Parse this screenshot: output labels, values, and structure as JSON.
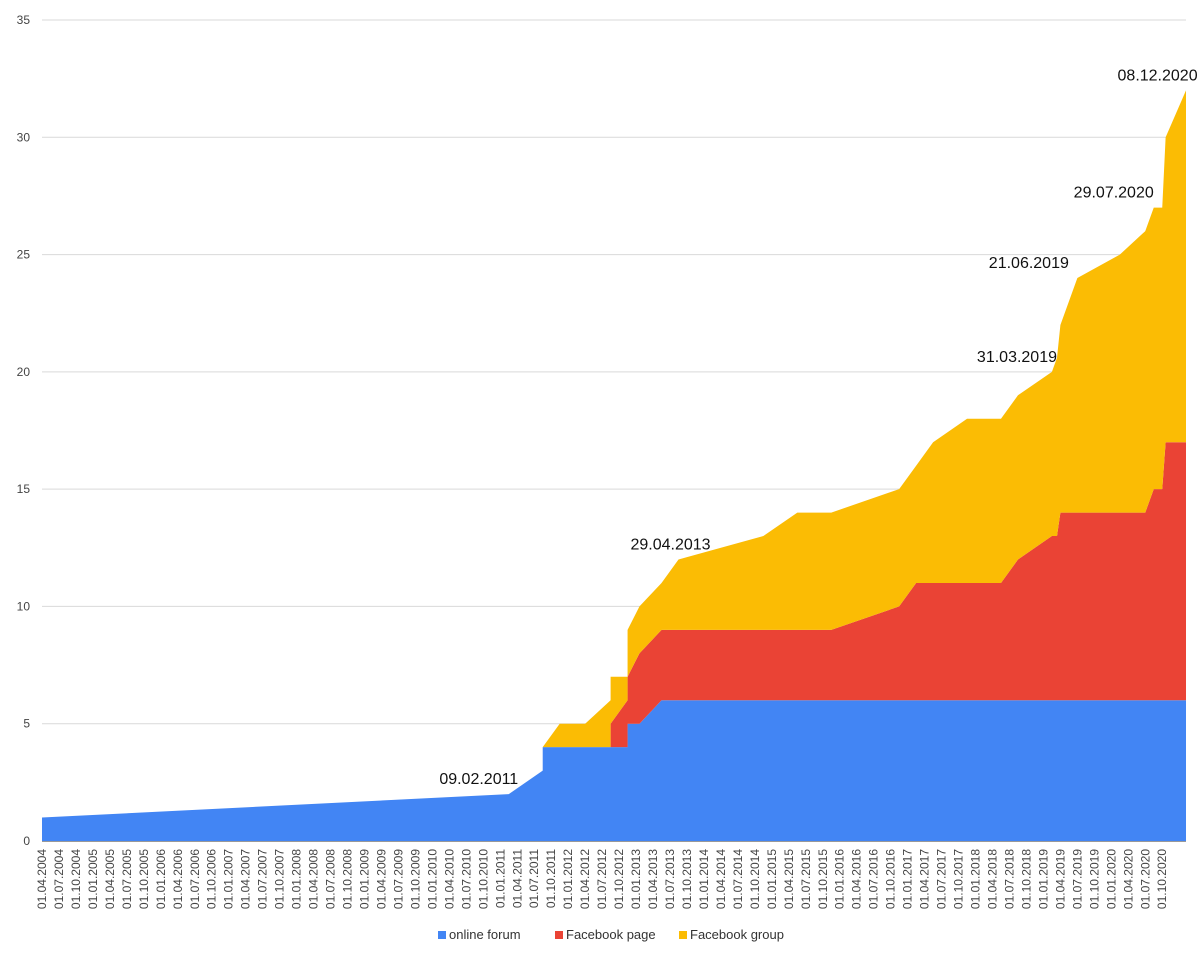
{
  "chart_data": {
    "type": "area",
    "stacked": true,
    "title": "",
    "xlabel": "",
    "ylabel": "",
    "ylim": [
      0,
      35
    ],
    "yticks": [
      0,
      5,
      10,
      15,
      20,
      25,
      30,
      35
    ],
    "grid": true,
    "legend_position": "bottom",
    "x_tick_labels": [
      "01.04.2004",
      "01.07.2004",
      "01.10.2004",
      "01.01.2005",
      "01.04.2005",
      "01.07.2005",
      "01.10.2005",
      "01.01.2006",
      "01.04.2006",
      "01.07.2006",
      "01.10.2006",
      "01.01.2007",
      "01.04.2007",
      "01.07.2007",
      "01.10.2007",
      "01.01.2008",
      "01.04.2008",
      "01.07.2008",
      "01.10.2008",
      "01.01.2009",
      "01.04.2009",
      "01.07.2009",
      "01.10.2009",
      "01.01.2010",
      "01.04.2010",
      "01.07.2010",
      "01.10.2010",
      "01.01.2011",
      "01.04.2011",
      "01.07.2011",
      "01.10.2011",
      "01.01.2012",
      "01.04.2012",
      "01.07.2012",
      "01.10.2012",
      "01.01.2013",
      "01.04.2013",
      "01.07.2013",
      "01.10.2013",
      "01.01.2014",
      "01.04.2014",
      "01.07.2014",
      "01.10.2014",
      "01.01.2015",
      "01.04.2015",
      "01.07.2015",
      "01.10.2015",
      "01.01.2016",
      "01.04.2016",
      "01.07.2016",
      "01.10.2016",
      "01.01.2017",
      "01.04.2017",
      "01.07.2017",
      "01.10.2017",
      "01.01.2018",
      "01.04.2018",
      "01.07.2018",
      "01.10.2018",
      "01.01.2019",
      "01.04.2019",
      "01.07.2019",
      "01.10.2019",
      "01.01.2020",
      "01.04.2020",
      "01.07.2020",
      "01.10.2020"
    ],
    "x_range": [
      0,
      67.4
    ],
    "series": [
      {
        "name": "online forum",
        "color": "#4285f4",
        "points": [
          [
            0,
            1
          ],
          [
            27.5,
            2
          ],
          [
            29.5,
            3
          ],
          [
            29.5,
            4
          ],
          [
            33.5,
            4
          ],
          [
            34.5,
            4
          ],
          [
            34.5,
            5
          ],
          [
            35.2,
            5
          ],
          [
            36.5,
            6
          ],
          [
            38,
            6
          ],
          [
            67.4,
            6
          ]
        ]
      },
      {
        "name": "Facebook page",
        "color": "#ea4335",
        "points": [
          [
            0,
            0
          ],
          [
            27.5,
            0
          ],
          [
            29.5,
            0
          ],
          [
            33.5,
            0
          ],
          [
            33.5,
            1
          ],
          [
            34.5,
            2
          ],
          [
            34.5,
            2
          ],
          [
            35.2,
            3
          ],
          [
            36.5,
            3
          ],
          [
            38,
            3
          ],
          [
            44.5,
            3
          ],
          [
            46.5,
            3
          ],
          [
            50.5,
            4
          ],
          [
            51.5,
            5
          ],
          [
            56.5,
            5
          ],
          [
            57.5,
            6
          ],
          [
            59.5,
            7
          ],
          [
            59.8,
            7
          ],
          [
            60,
            8
          ],
          [
            61,
            8
          ],
          [
            65,
            8
          ],
          [
            65.5,
            9
          ],
          [
            66,
            9
          ],
          [
            66.2,
            11
          ],
          [
            67.4,
            11
          ]
        ]
      },
      {
        "name": "Facebook group",
        "color": "#fbbc04",
        "points": [
          [
            0,
            0
          ],
          [
            27.5,
            0
          ],
          [
            29.5,
            0
          ],
          [
            30.5,
            1
          ],
          [
            32,
            1
          ],
          [
            33.5,
            2
          ],
          [
            33.5,
            2
          ],
          [
            34.5,
            1
          ],
          [
            34.5,
            2
          ],
          [
            35.2,
            2
          ],
          [
            36.5,
            2
          ],
          [
            37.5,
            3
          ],
          [
            42.5,
            4
          ],
          [
            44.5,
            5
          ],
          [
            46.5,
            5
          ],
          [
            50.5,
            5
          ],
          [
            51.5,
            5
          ],
          [
            52.5,
            6
          ],
          [
            54.5,
            7
          ],
          [
            56.5,
            7
          ],
          [
            57.5,
            7
          ],
          [
            59.5,
            7
          ],
          [
            60,
            8
          ],
          [
            61,
            10
          ],
          [
            63.5,
            11
          ],
          [
            65,
            12
          ],
          [
            65.5,
            12
          ],
          [
            66,
            12
          ],
          [
            66.2,
            13
          ],
          [
            67.4,
            15
          ]
        ]
      }
    ],
    "annotations": [
      {
        "text": "09.02.2011",
        "x": 27.5,
        "y": 2
      },
      {
        "text": "29.04.2013",
        "x": 37.5,
        "y": 12
      },
      {
        "text": "31.03.2019",
        "x": 59.8,
        "y": 20
      },
      {
        "text": "21.06.2019",
        "x": 60.5,
        "y": 24
      },
      {
        "text": "29.07.2020",
        "x": 65.5,
        "y": 27
      },
      {
        "text": "08.12.2020",
        "x": 67.2,
        "y": 32
      }
    ]
  }
}
